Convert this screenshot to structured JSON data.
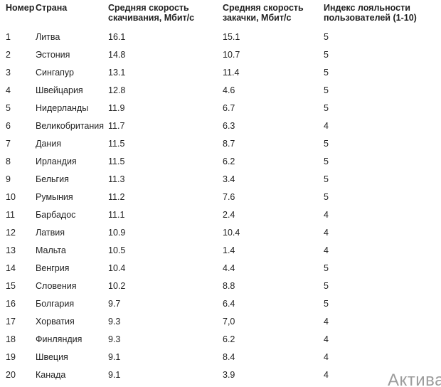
{
  "table": {
    "columns": [
      {
        "label": "Номер"
      },
      {
        "label": "Страна"
      },
      {
        "label": "Средняя скорость скачивания, Мбит/с"
      },
      {
        "label": "Средняя скорость закачки, Мбит/с"
      },
      {
        "label": "Индекс лояльности пользователей (1-10)"
      }
    ],
    "rows": [
      [
        "1",
        "Литва",
        "16.1",
        "15.1",
        "5"
      ],
      [
        "2",
        "Эстония",
        "14.8",
        "10.7",
        "5"
      ],
      [
        "3",
        "Сингапур",
        "13.1",
        "11.4",
        "5"
      ],
      [
        "4",
        "Швейцария",
        "12.8",
        "4.6",
        "5"
      ],
      [
        "5",
        "Нидерланды",
        "11.9",
        "6.7",
        "5"
      ],
      [
        "6",
        "Великобритания",
        "11.7",
        "6.3",
        "4"
      ],
      [
        "7",
        "Дания",
        "11.5",
        "8.7",
        "5"
      ],
      [
        "8",
        "Ирландия",
        "11.5",
        "6.2",
        "5"
      ],
      [
        "9",
        "Бельгия",
        "11.3",
        "3.4",
        "5"
      ],
      [
        "10",
        "Румыния",
        "11.2",
        "7.6",
        "5"
      ],
      [
        "11",
        "Барбадос",
        "11.1",
        "2.4",
        "4"
      ],
      [
        "12",
        "Латвия",
        "10.9",
        "10.4",
        "4"
      ],
      [
        "13",
        "Мальта",
        "10.5",
        "1.4",
        "4"
      ],
      [
        "14",
        "Венгрия",
        "10.4",
        "4.4",
        "5"
      ],
      [
        "15",
        "Словения",
        "10.2",
        "8.8",
        "5"
      ],
      [
        "16",
        "Болгария",
        "9.7",
        "6.4",
        "5"
      ],
      [
        "17",
        "Хорватия",
        "9.3",
        "7,0",
        "4"
      ],
      [
        "18",
        "Финляндия",
        "9.3",
        "6.2",
        "4"
      ],
      [
        "19",
        "Швеция",
        "9.1",
        "8.4",
        "4"
      ],
      [
        "20",
        "Канада",
        "9.1",
        "3.9",
        "4"
      ]
    ]
  },
  "watermark": {
    "text": "Актива",
    "color": "#9c9c9c"
  },
  "colors": {
    "background": "#ffffff",
    "header_text": "#1f1f1f",
    "body_text": "#222222"
  }
}
